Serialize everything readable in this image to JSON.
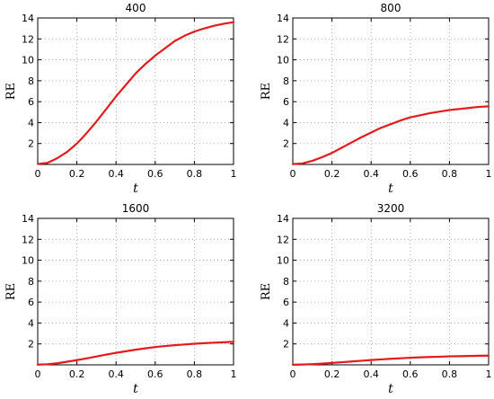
{
  "chart_data": [
    {
      "type": "line",
      "title": "400",
      "xlabel": "t",
      "ylabel": "RE",
      "xlim": [
        0,
        1
      ],
      "ylim": [
        0,
        14
      ],
      "xticks": [
        0,
        0.2,
        0.4,
        0.6,
        0.8,
        1
      ],
      "xtick_labels": [
        "0",
        "0.2",
        "0.4",
        "0.6",
        "0.8",
        "1"
      ],
      "yticks": [
        2,
        4,
        6,
        8,
        10,
        12,
        14
      ],
      "ytick_labels": [
        "2",
        "4",
        "6",
        "8",
        "10",
        "12",
        "14"
      ],
      "grid": true,
      "series": [
        {
          "color": "#e41a1c",
          "x": [
            0,
            0.05,
            0.1,
            0.15,
            0.2,
            0.25,
            0.3,
            0.35,
            0.4,
            0.45,
            0.5,
            0.55,
            0.6,
            0.65,
            0.7,
            0.75,
            0.8,
            0.85,
            0.9,
            0.95,
            1
          ],
          "y": [
            0.05,
            0.15,
            0.6,
            1.2,
            2.0,
            3.0,
            4.1,
            5.3,
            6.5,
            7.6,
            8.7,
            9.6,
            10.4,
            11.1,
            11.8,
            12.3,
            12.7,
            13.0,
            13.25,
            13.45,
            13.6
          ]
        }
      ]
    },
    {
      "type": "line",
      "title": "800",
      "xlabel": "t",
      "ylabel": "RE",
      "xlim": [
        0,
        1
      ],
      "ylim": [
        0,
        14
      ],
      "xticks": [
        0,
        0.2,
        0.4,
        0.6,
        0.8,
        1
      ],
      "xtick_labels": [
        "0",
        "0.2",
        "0.4",
        "0.6",
        "0.8",
        "1"
      ],
      "yticks": [
        2,
        4,
        6,
        8,
        10,
        12,
        14
      ],
      "ytick_labels": [
        "2",
        "4",
        "6",
        "8",
        "10",
        "12",
        "14"
      ],
      "grid": true,
      "series": [
        {
          "color": "#e41a1c",
          "x": [
            0,
            0.05,
            0.1,
            0.15,
            0.2,
            0.25,
            0.3,
            0.35,
            0.4,
            0.45,
            0.5,
            0.55,
            0.6,
            0.65,
            0.7,
            0.75,
            0.8,
            0.85,
            0.9,
            0.95,
            1
          ],
          "y": [
            0.03,
            0.1,
            0.35,
            0.7,
            1.1,
            1.6,
            2.1,
            2.6,
            3.05,
            3.5,
            3.85,
            4.2,
            4.5,
            4.7,
            4.9,
            5.05,
            5.2,
            5.3,
            5.4,
            5.5,
            5.55
          ]
        }
      ]
    },
    {
      "type": "line",
      "title": "1600",
      "xlabel": "t",
      "ylabel": "RE",
      "xlim": [
        0,
        1
      ],
      "ylim": [
        0,
        14
      ],
      "xticks": [
        0,
        0.2,
        0.4,
        0.6,
        0.8,
        1
      ],
      "xtick_labels": [
        "0",
        "0.2",
        "0.4",
        "0.6",
        "0.8",
        "1"
      ],
      "yticks": [
        2,
        4,
        6,
        8,
        10,
        12,
        14
      ],
      "ytick_labels": [
        "2",
        "4",
        "6",
        "8",
        "10",
        "12",
        "14"
      ],
      "grid": true,
      "series": [
        {
          "color": "#e41a1c",
          "x": [
            0,
            0.05,
            0.1,
            0.15,
            0.2,
            0.25,
            0.3,
            0.35,
            0.4,
            0.45,
            0.5,
            0.55,
            0.6,
            0.65,
            0.7,
            0.75,
            0.8,
            0.85,
            0.9,
            0.95,
            1
          ],
          "y": [
            0.02,
            0.06,
            0.15,
            0.3,
            0.45,
            0.62,
            0.8,
            0.98,
            1.15,
            1.3,
            1.45,
            1.58,
            1.7,
            1.8,
            1.88,
            1.95,
            2.02,
            2.07,
            2.12,
            2.16,
            2.2
          ]
        }
      ]
    },
    {
      "type": "line",
      "title": "3200",
      "xlabel": "t",
      "ylabel": "RE",
      "xlim": [
        0,
        1
      ],
      "ylim": [
        0,
        14
      ],
      "xticks": [
        0,
        0.2,
        0.4,
        0.6,
        0.8,
        1
      ],
      "xtick_labels": [
        "0",
        "0.2",
        "0.4",
        "0.6",
        "0.8",
        "1"
      ],
      "yticks": [
        2,
        4,
        6,
        8,
        10,
        12,
        14
      ],
      "ytick_labels": [
        "2",
        "4",
        "6",
        "8",
        "10",
        "12",
        "14"
      ],
      "grid": true,
      "series": [
        {
          "color": "#e41a1c",
          "x": [
            0,
            0.05,
            0.1,
            0.15,
            0.2,
            0.25,
            0.3,
            0.35,
            0.4,
            0.45,
            0.5,
            0.55,
            0.6,
            0.65,
            0.7,
            0.75,
            0.8,
            0.85,
            0.9,
            0.95,
            1
          ],
          "y": [
            0.01,
            0.03,
            0.07,
            0.12,
            0.18,
            0.25,
            0.32,
            0.39,
            0.46,
            0.52,
            0.58,
            0.63,
            0.68,
            0.72,
            0.75,
            0.78,
            0.81,
            0.83,
            0.85,
            0.87,
            0.88
          ]
        }
      ]
    }
  ]
}
